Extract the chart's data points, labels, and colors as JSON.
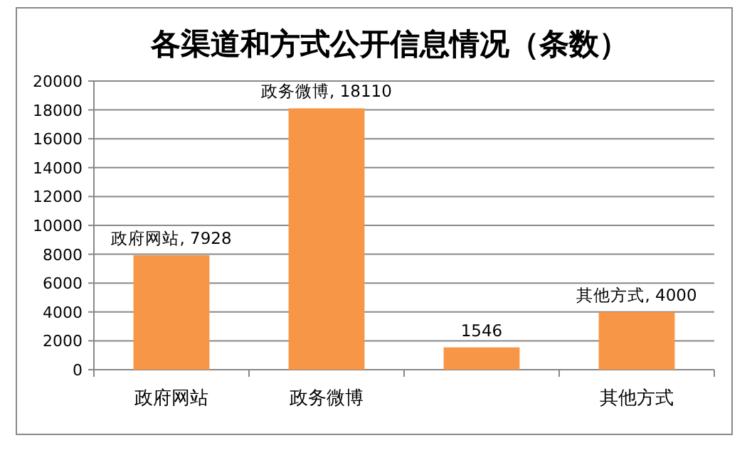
{
  "chart_data": {
    "type": "bar",
    "title": "各渠道和方式公开信息情况（条数）",
    "categories": [
      "政府网站",
      "政务微博",
      null,
      "其他方式"
    ],
    "values": [
      7928,
      18110,
      1546,
      4000
    ],
    "value_labels": [
      "政府网站, 7928",
      "政务微博, 18110",
      "1546",
      "其他方式, 4000"
    ],
    "color": "#f79646",
    "ylim": [
      0,
      20000
    ],
    "yticks": [
      0,
      2000,
      4000,
      6000,
      8000,
      10000,
      12000,
      14000,
      16000,
      18000,
      20000
    ],
    "grid": "y"
  }
}
